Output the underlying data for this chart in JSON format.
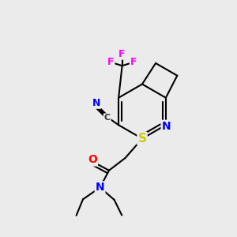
{
  "background_color": "#ebebeb",
  "bond_color": "#000000",
  "atom_colors": {
    "N": "#0000ff",
    "O": "#ff0000",
    "S": "#cccc00",
    "F": "#ff00ff",
    "C_label": "#333333"
  },
  "title": "",
  "figsize": [
    3.0,
    3.0
  ],
  "dpi": 100
}
